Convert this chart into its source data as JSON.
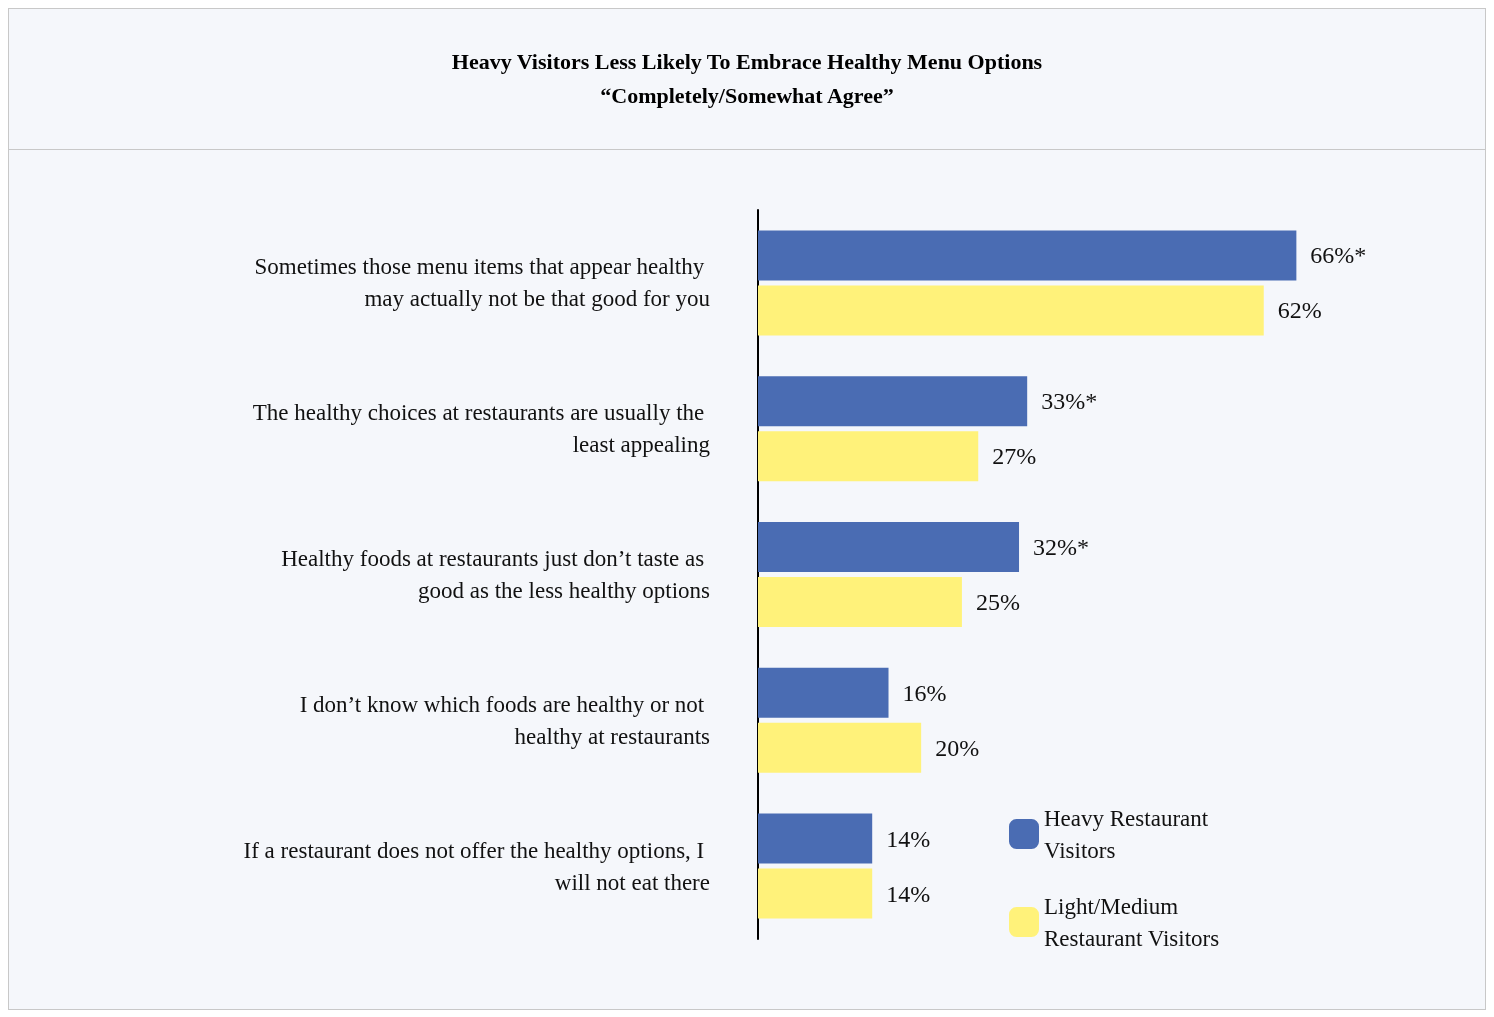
{
  "chart_data": {
    "type": "bar",
    "orientation": "horizontal",
    "title": "Heavy Visitors Less Likely To Embrace Healthy Menu Options",
    "subtitle": "“Completely/Somewhat Agree”",
    "categories": [
      "Sometimes those menu items that appear healthy may actually not be that good for you",
      "The healthy choices at restaurants are usually the least appealing",
      "Healthy foods at restaurants just don’t taste as good as the less healthy options",
      "I don’t know which foods are healthy or not healthy at restaurants",
      "If a restaurant does not offer the healthy options, I will not eat there"
    ],
    "series": [
      {
        "name": "Heavy Restaurant Visitors",
        "color": "#4a6cb3",
        "values": [
          66,
          33,
          32,
          16,
          14
        ],
        "value_labels": [
          "66%*",
          "33%*",
          "32%*",
          "16%",
          "14%"
        ]
      },
      {
        "name": "Light/Medium Restaurant Visitors",
        "color": "#fff27a",
        "values": [
          62,
          27,
          25,
          20,
          14
        ],
        "value_labels": [
          "62%",
          "27%",
          "25%",
          "20%",
          "14%"
        ]
      }
    ],
    "legend": "bottom right"
  }
}
